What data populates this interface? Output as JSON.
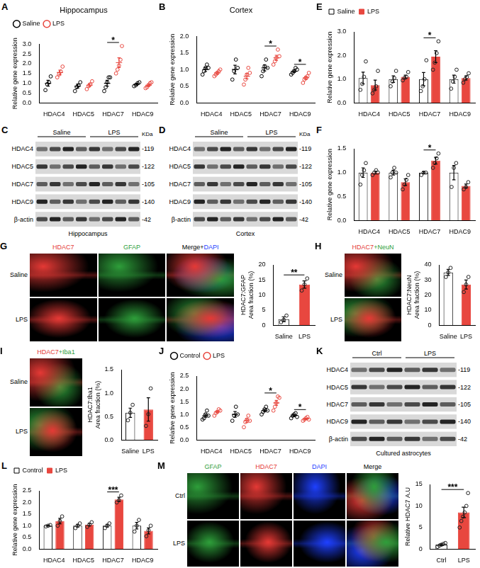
{
  "chart_data": [
    {
      "panel_label": "A",
      "type": "dot",
      "title": "Hippocampus",
      "y_label": "Relative gene expression",
      "categories": [
        "HDAC4",
        "HDAC5",
        "HDAC7",
        "HDAC9"
      ],
      "series": [
        {
          "name": "Saline",
          "color": "#000000",
          "values": [
            1.0,
            0.85,
            1.0,
            0.95
          ],
          "errors": [
            0.15,
            0.1,
            0.15,
            0.05
          ],
          "points": [
            [
              0.65,
              0.95,
              1.05,
              1.35
            ],
            [
              0.6,
              0.8,
              0.9,
              1.05
            ],
            [
              0.6,
              0.8,
              1.05,
              1.3,
              1.3
            ],
            [
              0.85,
              0.9,
              1.0,
              1.05
            ]
          ]
        },
        {
          "name": "LPS",
          "color": "#e8473f",
          "values": [
            1.55,
            0.9,
            2.05,
            0.9
          ],
          "errors": [
            0.12,
            0.08,
            0.25,
            0.06
          ],
          "points": [
            [
              1.3,
              1.45,
              1.6,
              1.85
            ],
            [
              0.7,
              0.85,
              0.95,
              1.1
            ],
            [
              1.5,
              1.7,
              1.9,
              2.2,
              2.9
            ],
            [
              0.75,
              0.8,
              0.9,
              1.0,
              1.05
            ]
          ]
        }
      ],
      "ylim": [
        0,
        3
      ],
      "yticks": [
        {
          "value": 0,
          "label": "0.0"
        },
        0.5,
        {
          "value": 1,
          "label": "1.0"
        },
        1.5,
        {
          "value": 2,
          "label": "2.0"
        },
        2.5,
        {
          "value": 3,
          "label": "3.0"
        }
      ],
      "legend": "top-left",
      "annotations": [
        {
          "category": "HDAC7",
          "text": "*"
        }
      ]
    },
    {
      "panel_label": "B",
      "type": "dot",
      "title": "Cortex",
      "y_label": "Relative gene expression",
      "categories": [
        "HDAC4",
        "HDAC5",
        "HDAC7",
        "HDAC9"
      ],
      "series": [
        {
          "name": "Saline",
          "color": "#000000",
          "values": [
            1.0,
            1.0,
            1.05,
            0.95
          ],
          "errors": [
            0.06,
            0.13,
            0.09,
            0.04
          ],
          "points": [
            [
              0.85,
              0.95,
              1.05,
              1.15,
              1.05
            ],
            [
              0.7,
              0.95,
              1.3,
              1.05
            ],
            [
              0.8,
              0.95,
              1.1,
              1.3,
              1.05
            ],
            [
              0.85,
              0.9,
              0.95,
              1.05,
              1.0
            ]
          ]
        },
        {
          "name": "LPS",
          "color": "#e8473f",
          "values": [
            0.9,
            0.8,
            1.35,
            0.75
          ],
          "errors": [
            0.04,
            0.08,
            0.08,
            0.05
          ],
          "points": [
            [
              0.8,
              0.85,
              0.9,
              0.95,
              1.0
            ],
            [
              0.55,
              0.7,
              0.85,
              1.05,
              0.9
            ],
            [
              1.15,
              1.25,
              1.35,
              1.6,
              1.4
            ],
            [
              0.6,
              0.7,
              0.75,
              0.8,
              0.9
            ]
          ]
        }
      ],
      "ylim": [
        0,
        2
      ],
      "yticks": [
        {
          "value": 0,
          "label": "0.0"
        },
        0.5,
        {
          "value": 1,
          "label": "1.0"
        },
        1.5,
        {
          "value": 2,
          "label": "2.0"
        }
      ],
      "annotations": [
        {
          "category": "HDAC7",
          "text": "*"
        },
        {
          "category": "HDAC9",
          "text": "*"
        }
      ]
    },
    {
      "panel_label": "E",
      "type": "bar",
      "y_label": "Relative gene expression",
      "categories": [
        "HDAC4",
        "HDAC5",
        "HDAC7",
        "HDAC9"
      ],
      "series": [
        {
          "name": "Saline",
          "color": "#ffffff",
          "values": [
            1.05,
            1.0,
            1.0,
            1.0
          ],
          "errors": [
            0.25,
            0.14,
            0.28,
            0.17
          ],
          "points": [
            [
              0.55,
              0.8,
              1.1,
              1.75
            ],
            [
              0.7,
              0.9,
              1.05,
              1.35
            ],
            [
              0.5,
              0.7,
              1.0,
              1.8
            ],
            [
              0.6,
              0.9,
              1.1,
              1.4
            ]
          ]
        },
        {
          "name": "LPS",
          "color": "#e8473f",
          "values": [
            0.75,
            1.1,
            1.95,
            1.05
          ],
          "errors": [
            0.21,
            0.07,
            0.25,
            0.08
          ],
          "points": [
            [
              0.4,
              0.55,
              0.7,
              1.35
            ],
            [
              0.95,
              1.05,
              1.1,
              1.3
            ],
            [
              1.4,
              1.7,
              2.1,
              2.6
            ],
            [
              0.85,
              1.0,
              1.1,
              1.25
            ]
          ]
        }
      ],
      "ylim": [
        0,
        3
      ],
      "yticks": [
        {
          "value": 0,
          "label": "0.0"
        },
        {
          "value": 1,
          "label": "1.0"
        },
        {
          "value": 2,
          "label": "2.0"
        },
        {
          "value": 3,
          "label": "3.0"
        }
      ],
      "legend": "top-left",
      "annotations": [
        {
          "category": "HDAC7",
          "text": "*"
        }
      ]
    },
    {
      "panel_label": "F",
      "type": "bar",
      "y_label": "Relative gene expression",
      "categories": [
        "HDAC4",
        "HDAC5",
        "HDAC7",
        "HDAC9"
      ],
      "series": [
        {
          "name": "Saline",
          "color": "#ffffff",
          "values": [
            1.0,
            1.0,
            1.0,
            1.0
          ],
          "errors": [
            0.1,
            0.05,
            0.02,
            0.15
          ],
          "points": [
            [
              0.75,
              0.95,
              1.05,
              1.2
            ],
            [
              0.9,
              1.0,
              1.1,
              1.0
            ],
            [
              0.95,
              1.0,
              1.0
            ],
            [
              0.7,
              1.1,
              1.2
            ]
          ]
        },
        {
          "name": "LPS",
          "color": "#e8473f",
          "values": [
            1.0,
            0.8,
            1.25,
            0.72
          ],
          "errors": [
            0.03,
            0.07,
            0.07,
            0.04
          ],
          "points": [
            [
              0.95,
              1.0,
              1.05,
              1.0
            ],
            [
              0.65,
              0.75,
              0.85,
              0.95
            ],
            [
              1.1,
              1.2,
              1.3,
              1.4
            ],
            [
              0.65,
              0.7,
              0.8
            ]
          ]
        }
      ],
      "ylim": [
        0,
        1.5
      ],
      "yticks": [
        {
          "value": 0,
          "label": "0.0"
        },
        0.5,
        {
          "value": 1,
          "label": "1.0"
        },
        1.5
      ],
      "annotations": [
        {
          "category": "HDAC7",
          "text": "*"
        }
      ]
    },
    {
      "type": "bar",
      "y_label": [
        "HDAC7:GFAP",
        "Area fraction (%)"
      ],
      "categories": [
        "Saline",
        "LPS"
      ],
      "series": [
        {
          "colors": [
            "#ffffff",
            "#e8473f"
          ],
          "values": [
            2,
            13.5
          ],
          "errors": [
            0.8,
            1.2
          ],
          "points": [
            [
              1,
              1.8,
              3.2
            ],
            [
              11.5,
              13.5,
              15.5
            ]
          ]
        }
      ],
      "ylim": [
        0,
        20
      ],
      "yticks": [
        0,
        5,
        10,
        15,
        20
      ],
      "annotations": [
        {
          "text": "**"
        }
      ]
    },
    {
      "type": "bar",
      "y_label": [
        "HDAC7:NeuN",
        "Area fraction (%)"
      ],
      "categories": [
        "Saline",
        "LPS"
      ],
      "series": [
        {
          "colors": [
            "#ffffff",
            "#e8473f"
          ],
          "values": [
            35,
            27
          ],
          "errors": [
            2,
            3
          ],
          "points": [
            [
              32,
              35,
              38
            ],
            [
              22,
              27,
              32
            ]
          ]
        }
      ],
      "ylim": [
        0,
        40
      ],
      "yticks": [
        0,
        10,
        20,
        30,
        40
      ]
    },
    {
      "type": "bar",
      "y_label": [
        "HDAC7:Iba1",
        "Area fraction (%)"
      ],
      "categories": [
        "Saline",
        "LPS"
      ],
      "series": [
        {
          "colors": [
            "#ffffff",
            "#e8473f"
          ],
          "values": [
            0.58,
            0.65
          ],
          "errors": [
            0.1,
            0.25
          ],
          "points": [
            [
              0.42,
              0.58,
              0.75
            ],
            [
              0.3,
              0.55,
              1.1
            ]
          ]
        }
      ],
      "ylim": [
        0,
        1.5
      ],
      "yticks": [
        {
          "value": 0,
          "label": "0.0"
        },
        0.5,
        {
          "value": 1,
          "label": "1.0"
        },
        1.5
      ]
    },
    {
      "panel_label": "J",
      "type": "dot",
      "y_label": "Relative gene expression",
      "categories": [
        "HDAC4",
        "HDAC5",
        "HDAC7",
        "HDAC9"
      ],
      "series": [
        {
          "name": "Control",
          "color": "#000000",
          "values": [
            0.95,
            1.0,
            1.15,
            0.95
          ],
          "errors": [
            0.06,
            0.11,
            0.05,
            0.04
          ],
          "points": [
            [
              0.8,
              0.85,
              1.0,
              1.15,
              0.95
            ],
            [
              0.75,
              0.95,
              1.3,
              1.0
            ],
            [
              1.0,
              1.1,
              1.2,
              1.3,
              1.15
            ],
            [
              0.85,
              0.95,
              1.0,
              1.05,
              0.9
            ]
          ]
        },
        {
          "name": "LPS",
          "color": "#e8473f",
          "values": [
            1.1,
            0.75,
            1.45,
            0.82
          ],
          "errors": [
            0.04,
            0.07,
            0.1,
            0.03
          ],
          "points": [
            [
              0.95,
              1.05,
              1.1,
              1.2,
              1.15
            ],
            [
              0.5,
              0.7,
              0.8,
              0.95,
              0.75
            ],
            [
              1.15,
              1.3,
              1.45,
              1.7,
              1.65
            ],
            [
              0.75,
              0.8,
              0.85,
              0.9,
              0.8
            ]
          ]
        }
      ],
      "ylim": [
        0,
        2.5
      ],
      "yticks": [
        {
          "value": 0,
          "label": "0.0"
        },
        0.5,
        {
          "value": 1,
          "label": "1.0"
        },
        1.5,
        {
          "value": 2,
          "label": "2.0"
        },
        2.5
      ],
      "legend": "top-left",
      "annotations": [
        {
          "category": "HDAC7",
          "text": "*"
        },
        {
          "category": "HDAC9",
          "text": "*"
        }
      ]
    },
    {
      "panel_label": "L",
      "type": "bar",
      "y_label": "Relative gene expression",
      "categories": [
        "HDAC4",
        "HDAC5",
        "HDAC7",
        "HDAC9"
      ],
      "series": [
        {
          "name": "Control",
          "color": "#ffffff",
          "values": [
            1.0,
            1.0,
            1.0,
            1.0
          ],
          "errors": [
            0.02,
            0.06,
            0.06,
            0.14
          ],
          "points": [
            [
              0.97,
              1.0,
              1.03
            ],
            [
              0.9,
              1.0,
              1.1
            ],
            [
              0.9,
              1.0,
              1.1
            ],
            [
              0.75,
              1.0,
              1.25
            ]
          ]
        },
        {
          "name": "LPS",
          "color": "#e8473f",
          "values": [
            1.2,
            1.05,
            2.13,
            0.78
          ],
          "errors": [
            0.12,
            0.06,
            0.09,
            0.13
          ],
          "points": [
            [
              1.0,
              1.2,
              1.4
            ],
            [
              0.95,
              1.05,
              1.15
            ],
            [
              2.0,
              2.1,
              2.3
            ],
            [
              0.55,
              0.8,
              1.0
            ]
          ]
        }
      ],
      "ylim": [
        0,
        2.5
      ],
      "yticks": [
        {
          "value": 0,
          "label": "0.0"
        },
        0.5,
        {
          "value": 1,
          "label": "1.0"
        },
        1.5,
        {
          "value": 2,
          "label": "2.0"
        },
        2.5
      ],
      "legend": "top-left",
      "annotations": [
        {
          "category": "HDAC7",
          "text": "***"
        }
      ]
    },
    {
      "type": "bar",
      "y_label": "Relative HDAC7 A.U",
      "categories": [
        "Ctrl",
        "LPS"
      ],
      "series": [
        {
          "colors": [
            "#ffffff",
            "#e8473f"
          ],
          "values": [
            1.0,
            8.5
          ],
          "errors": [
            0.2,
            1.2
          ],
          "points": [
            [
              0.5,
              0.8,
              1.0,
              1.2,
              1.4
            ],
            [
              5,
              6.5,
              7.5,
              8.5,
              10,
              13
            ]
          ]
        }
      ],
      "ylim": [
        0,
        15
      ],
      "yticks": [
        0,
        5,
        10,
        15
      ],
      "annotations": [
        {
          "text": "***"
        }
      ]
    }
  ],
  "blots": [
    {
      "panel_label": "C",
      "groups": [
        "Saline",
        "LPS"
      ],
      "unit": "KDa",
      "rows": [
        {
          "label": "HDAC4",
          "size": "-119"
        },
        {
          "label": "HDAC5",
          "size": "-122"
        },
        {
          "label": "HDAC7",
          "size": "-105"
        },
        {
          "label": "HDAC9",
          "size": "-140"
        },
        {
          "label": "β-actin",
          "size": "-42"
        }
      ],
      "caption": "Hippocampus"
    },
    {
      "panel_label": "D",
      "groups": [
        "Saline",
        "LPS"
      ],
      "unit": "KDa",
      "rows": [
        {
          "label": "HDAC4",
          "size": "-119"
        },
        {
          "label": "HDAC5",
          "size": "-122"
        },
        {
          "label": "HDAC7",
          "size": "-105"
        },
        {
          "label": "HDAC9",
          "size": "-140"
        },
        {
          "label": "β-actin",
          "size": "-42"
        }
      ],
      "caption": "Cortex"
    },
    {
      "panel_label": "K",
      "groups": [
        "Ctrl",
        "LPS"
      ],
      "rows": [
        {
          "label": "HDAC4",
          "size": "-119"
        },
        {
          "label": "HDAC5",
          "size": "-122"
        },
        {
          "label": "HDAC7",
          "size": "-105"
        },
        {
          "label": "HDAC9",
          "size": "-140"
        },
        {
          "label": "β-actin",
          "size": "-42"
        }
      ],
      "caption": "Cultured astrocytes"
    }
  ],
  "images": [
    {
      "panel_label": "G",
      "rows": [
        "Saline",
        "LPS"
      ],
      "columns": [
        [
          {
            "text": "HDAC7",
            "color": "#e53935"
          }
        ],
        [
          {
            "text": "GFAP",
            "color": "#2e9e3a"
          }
        ],
        [
          {
            "text": "Merge+",
            "color": "#000000"
          },
          {
            "text": "DAPI",
            "color": "#1e40ff"
          }
        ]
      ]
    },
    {
      "panel_label": "H",
      "rows": [
        "Saline",
        "LPS"
      ],
      "columns": [
        [
          {
            "text": "HDAC7",
            "color": "#e53935"
          },
          {
            "text": "+NeuN",
            "color": "#2e9e3a"
          }
        ]
      ]
    },
    {
      "panel_label": "I",
      "rows": [
        "Saline",
        "LPS"
      ],
      "columns": [
        [
          {
            "text": "HDAC7",
            "color": "#e53935"
          },
          {
            "text": "+Iba1",
            "color": "#2e9e3a"
          }
        ]
      ]
    },
    {
      "panel_label": "M",
      "rows": [
        "Ctrl",
        "LPS"
      ],
      "columns": [
        [
          {
            "text": "GFAP",
            "color": "#2e9e3a"
          }
        ],
        [
          {
            "text": "HDAC7",
            "color": "#e53935"
          }
        ],
        [
          {
            "text": "DAPI",
            "color": "#1e40ff"
          }
        ],
        [
          {
            "text": "Merge",
            "color": "#000000"
          }
        ]
      ]
    }
  ]
}
